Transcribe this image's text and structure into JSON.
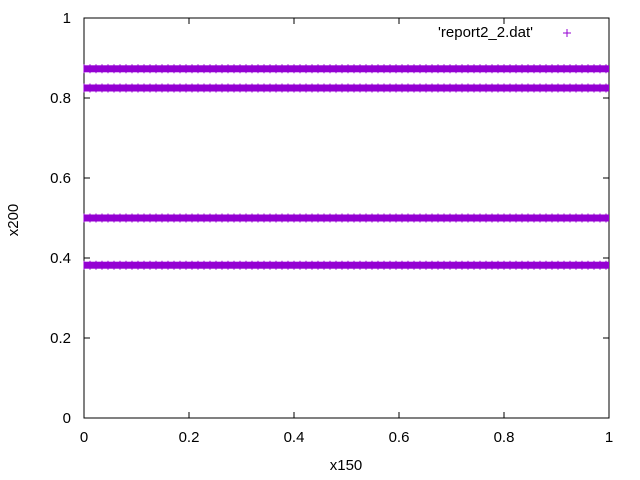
{
  "chart_data": {
    "type": "scatter",
    "title": "",
    "xlabel": "x150",
    "ylabel": "x200",
    "xlim": [
      0,
      1
    ],
    "ylim": [
      0,
      1
    ],
    "xticks": [
      "0",
      "0.2",
      "0.4",
      "0.6",
      "0.8",
      "1"
    ],
    "yticks": [
      "0",
      "0.2",
      "0.4",
      "0.6",
      "0.8",
      "1"
    ],
    "legend_position": "top-right",
    "grid": false,
    "marker": "+",
    "series": [
      {
        "name": "'report2_2.dat'",
        "color": "#9400d3",
        "y_levels": [
          0.873,
          0.825,
          0.5,
          0.382
        ],
        "x_range": [
          0,
          1
        ]
      }
    ]
  }
}
